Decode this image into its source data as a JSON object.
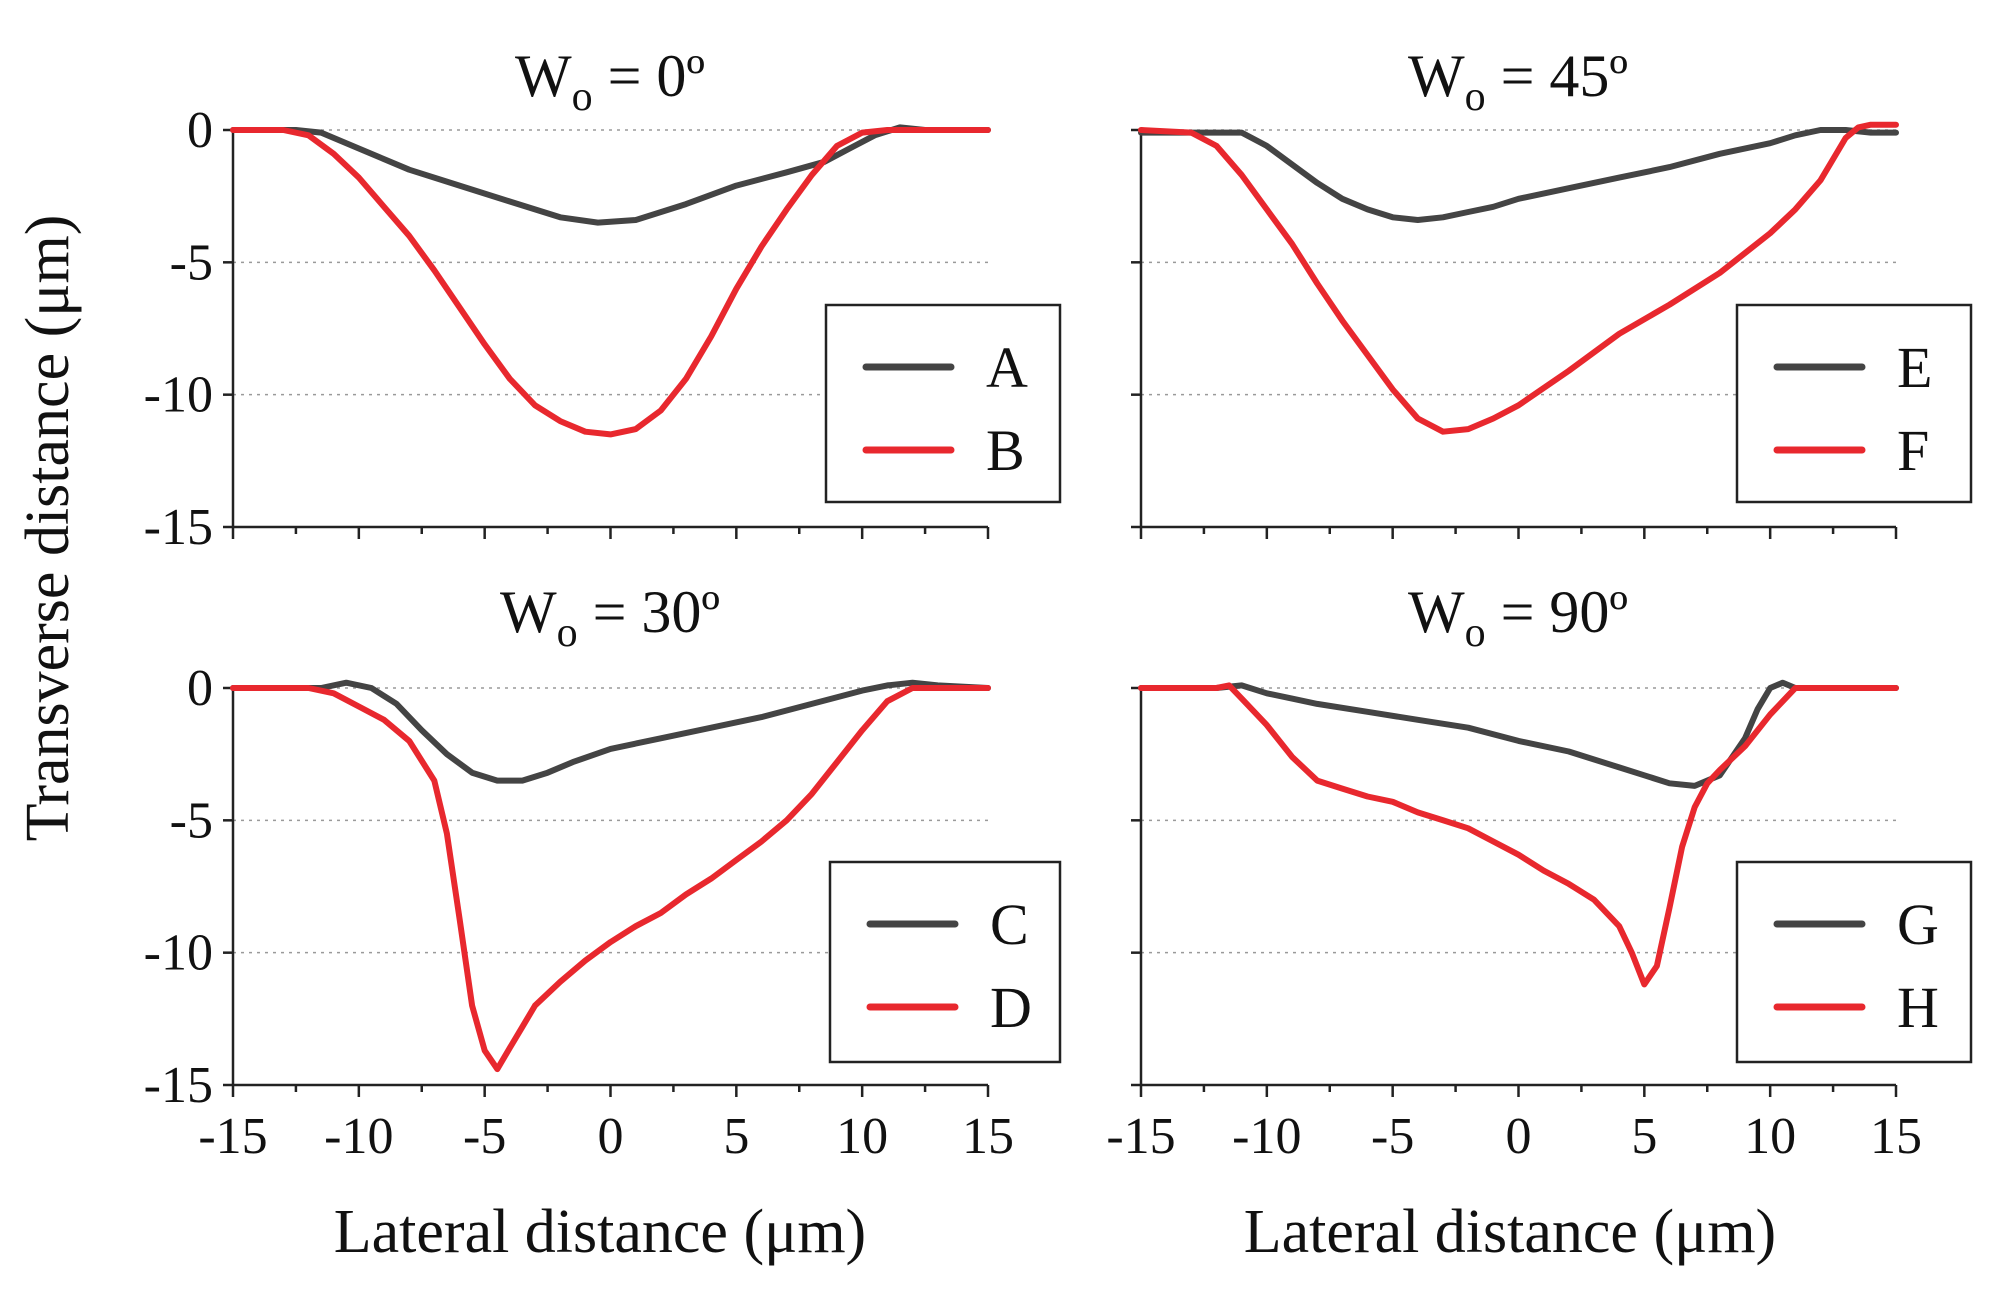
{
  "figure": {
    "ylabel": "Transverse distance (μm)",
    "xlabel": "Lateral distance (μm)"
  },
  "chart_data": [
    {
      "type": "line",
      "title_main": "W",
      "title_sub": "o",
      "title_rest": " = 0º",
      "xlim": [
        -15,
        15
      ],
      "ylim": [
        -15,
        0
      ],
      "xticks": [
        -15,
        -10,
        -5,
        0,
        5,
        10,
        15
      ],
      "yticks": [
        0,
        -5,
        -10,
        -15
      ],
      "legend_position": "right",
      "series": [
        {
          "name": "A",
          "color": "#444444",
          "x": [
            -15,
            -12.5,
            -11.5,
            -10,
            -8,
            -6,
            -4,
            -2,
            -0.5,
            1,
            3,
            5,
            7,
            8.5,
            9.5,
            10.5,
            11.5,
            12.5,
            15
          ],
          "y": [
            0,
            0,
            -0.1,
            -0.7,
            -1.5,
            -2.1,
            -2.7,
            -3.3,
            -3.5,
            -3.4,
            -2.8,
            -2.1,
            -1.6,
            -1.2,
            -0.7,
            -0.2,
            0.1,
            0,
            0
          ]
        },
        {
          "name": "B",
          "color": "#e8282e",
          "x": [
            -15,
            -13,
            -12,
            -11,
            -10,
            -9,
            -8,
            -7,
            -6,
            -5,
            -4,
            -3,
            -2,
            -1,
            0,
            1,
            2,
            3,
            4,
            5,
            6,
            7,
            8,
            9,
            10,
            11,
            12,
            15
          ],
          "y": [
            0,
            0,
            -0.2,
            -0.9,
            -1.8,
            -2.9,
            -4,
            -5.3,
            -6.7,
            -8.1,
            -9.4,
            -10.4,
            -11,
            -11.4,
            -11.5,
            -11.3,
            -10.6,
            -9.4,
            -7.8,
            -6,
            -4.4,
            -3,
            -1.7,
            -0.6,
            -0.1,
            0,
            0,
            0
          ]
        }
      ]
    },
    {
      "type": "line",
      "title_main": "W",
      "title_sub": "o",
      "title_rest": " = 45º",
      "xlim": [
        -15,
        15
      ],
      "ylim": [
        -15,
        0
      ],
      "xticks": [
        -15,
        -10,
        -5,
        0,
        5,
        10,
        15
      ],
      "yticks": [
        0,
        -5,
        -10,
        -15
      ],
      "legend_position": "right",
      "series": [
        {
          "name": "E",
          "color": "#444444",
          "x": [
            -15,
            -12,
            -11,
            -10,
            -9,
            -8,
            -7,
            -6,
            -5,
            -4,
            -3,
            -2,
            -1,
            0,
            2,
            4,
            6,
            8,
            10,
            11,
            12,
            13,
            14,
            15
          ],
          "y": [
            -0.1,
            -0.1,
            -0.1,
            -0.6,
            -1.3,
            -2,
            -2.6,
            -3,
            -3.3,
            -3.4,
            -3.3,
            -3.1,
            -2.9,
            -2.6,
            -2.2,
            -1.8,
            -1.4,
            -0.9,
            -0.5,
            -0.2,
            0,
            0,
            -0.1,
            -0.1
          ]
        },
        {
          "name": "F",
          "color": "#e8282e",
          "x": [
            -15,
            -13,
            -12,
            -11,
            -10,
            -9,
            -8,
            -7,
            -6,
            -5,
            -4,
            -3,
            -2,
            -1,
            0,
            2,
            4,
            6,
            8,
            10,
            11,
            12,
            12.5,
            13,
            13.5,
            14,
            15
          ],
          "y": [
            0,
            -0.1,
            -0.6,
            -1.7,
            -3,
            -4.3,
            -5.8,
            -7.2,
            -8.5,
            -9.8,
            -10.9,
            -11.4,
            -11.3,
            -10.9,
            -10.4,
            -9.1,
            -7.7,
            -6.6,
            -5.4,
            -3.9,
            -3,
            -1.9,
            -1.1,
            -0.3,
            0.1,
            0.2,
            0.2
          ]
        }
      ]
    },
    {
      "type": "line",
      "title_main": "W",
      "title_sub": "o",
      "title_rest": " = 30º",
      "xlim": [
        -15,
        15
      ],
      "ylim": [
        -15,
        0
      ],
      "xticks": [
        -15,
        -10,
        -5,
        0,
        5,
        10,
        15
      ],
      "yticks": [
        0,
        -5,
        -10,
        -15
      ],
      "legend_position": "right",
      "series": [
        {
          "name": "C",
          "color": "#444444",
          "x": [
            -15,
            -11.5,
            -10.5,
            -9.5,
            -8.5,
            -7.5,
            -6.5,
            -5.5,
            -4.5,
            -3.5,
            -2.5,
            -1.5,
            0,
            2,
            4,
            6,
            8,
            10,
            11,
            12,
            13,
            15
          ],
          "y": [
            0,
            0,
            0.2,
            0,
            -0.6,
            -1.6,
            -2.5,
            -3.2,
            -3.5,
            -3.5,
            -3.2,
            -2.8,
            -2.3,
            -1.9,
            -1.5,
            -1.1,
            -0.6,
            -0.1,
            0.1,
            0.2,
            0.1,
            0
          ]
        },
        {
          "name": "D",
          "color": "#e8282e",
          "x": [
            -15,
            -12,
            -11,
            -10,
            -9,
            -8,
            -7,
            -6.5,
            -6,
            -5.5,
            -5,
            -4.5,
            -4,
            -3.5,
            -3,
            -2,
            -1,
            0,
            1,
            2,
            3,
            4,
            5,
            6,
            7,
            8,
            9,
            10,
            11,
            12,
            15
          ],
          "y": [
            0,
            0,
            -0.2,
            -0.7,
            -1.2,
            -2,
            -3.5,
            -5.5,
            -8.7,
            -12,
            -13.7,
            -14.4,
            -13.6,
            -12.8,
            -12,
            -11.1,
            -10.3,
            -9.6,
            -9,
            -8.5,
            -7.8,
            -7.2,
            -6.5,
            -5.8,
            -5,
            -4,
            -2.8,
            -1.6,
            -0.5,
            0,
            0
          ]
        }
      ]
    },
    {
      "type": "line",
      "title_main": "W",
      "title_sub": "o",
      "title_rest": " = 90º",
      "xlim": [
        -15,
        15
      ],
      "ylim": [
        -15,
        0
      ],
      "xticks": [
        -15,
        -10,
        -5,
        0,
        5,
        10,
        15
      ],
      "yticks": [
        0,
        -5,
        -10,
        -15
      ],
      "legend_position": "right",
      "series": [
        {
          "name": "G",
          "color": "#444444",
          "x": [
            -15,
            -12,
            -11,
            -10,
            -9,
            -8,
            -6,
            -4,
            -2,
            0,
            2,
            4,
            5,
            6,
            7,
            8,
            9,
            9.5,
            10,
            10.5,
            11,
            12,
            15
          ],
          "y": [
            0,
            0,
            0.1,
            -0.2,
            -0.4,
            -0.6,
            -0.9,
            -1.2,
            -1.5,
            -2,
            -2.4,
            -3,
            -3.3,
            -3.6,
            -3.7,
            -3.3,
            -1.9,
            -0.8,
            0,
            0.2,
            0,
            0,
            0
          ]
        },
        {
          "name": "H",
          "color": "#e8282e",
          "x": [
            -15,
            -12,
            -11.5,
            -11,
            -10,
            -9,
            -8,
            -7,
            -6,
            -5,
            -4,
            -3,
            -2,
            -1,
            0,
            1,
            2,
            3,
            4,
            4.5,
            5,
            5.5,
            6,
            6.5,
            7,
            7.5,
            8,
            9,
            10,
            11,
            12,
            15
          ],
          "y": [
            0,
            0,
            0.1,
            -0.4,
            -1.4,
            -2.6,
            -3.5,
            -3.8,
            -4.1,
            -4.3,
            -4.7,
            -5,
            -5.3,
            -5.8,
            -6.3,
            -6.9,
            -7.4,
            -8,
            -9,
            -10,
            -11.2,
            -10.5,
            -8.3,
            -6,
            -4.5,
            -3.6,
            -3.1,
            -2.2,
            -1,
            0,
            0,
            0
          ]
        }
      ]
    }
  ]
}
